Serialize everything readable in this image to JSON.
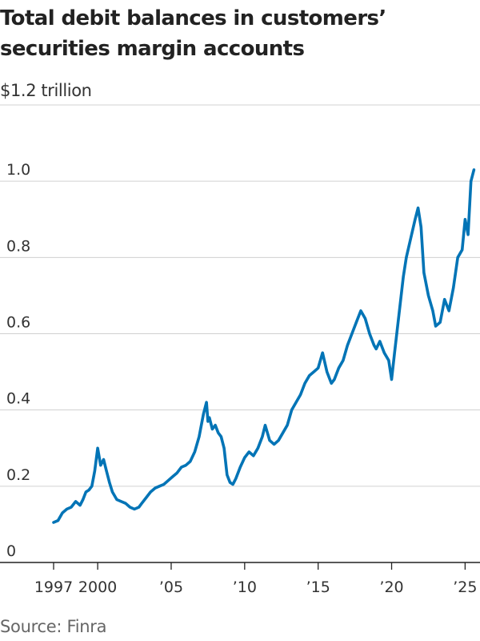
{
  "chart_data": {
    "type": "line",
    "title": "Total debit balances in customers’ securities margin accounts",
    "unit_label": "$1.2 trillion",
    "source": "Source: Finra",
    "ylim": [
      0,
      1.2
    ],
    "y_ticks": [
      {
        "value": 0,
        "label": "0"
      },
      {
        "value": 0.2,
        "label": "0.2"
      },
      {
        "value": 0.4,
        "label": "0.4"
      },
      {
        "value": 0.6,
        "label": "0.6"
      },
      {
        "value": 0.8,
        "label": "0.8"
      },
      {
        "value": 1.0,
        "label": "1.0"
      }
    ],
    "x_ticks": [
      {
        "value": 1997,
        "label": "1997"
      },
      {
        "value": 2000,
        "label": "2000"
      },
      {
        "value": 2005,
        "label": "’05"
      },
      {
        "value": 2010,
        "label": "’10"
      },
      {
        "value": 2015,
        "label": "’15"
      },
      {
        "value": 2020,
        "label": "’20"
      },
      {
        "value": 2025,
        "label": "’25"
      }
    ],
    "grid": true,
    "line_color": "#0274b6",
    "series": [
      {
        "x": [
          1997.0,
          1997.3,
          1997.6,
          1997.9,
          1998.2,
          1998.5,
          1998.8,
          1999.0,
          1999.2,
          1999.4,
          1999.6,
          1999.8,
          2000.0,
          2000.2,
          2000.4,
          2000.6,
          2000.8,
          2001.0,
          2001.3,
          2001.6,
          2001.9,
          2002.2,
          2002.5,
          2002.8,
          2003.0,
          2003.3,
          2003.6,
          2003.9,
          2004.2,
          2004.5,
          2004.8,
          2005.1,
          2005.4,
          2005.7,
          2006.0,
          2006.3,
          2006.6,
          2006.9,
          2007.2,
          2007.4,
          2007.5,
          2007.6,
          2007.8,
          2008.0,
          2008.2,
          2008.4,
          2008.6,
          2008.8,
          2009.0,
          2009.2,
          2009.4,
          2009.7,
          2010.0,
          2010.3,
          2010.6,
          2010.9,
          2011.2,
          2011.4,
          2011.7,
          2012.0,
          2012.3,
          2012.6,
          2012.9,
          2013.2,
          2013.5,
          2013.8,
          2014.1,
          2014.4,
          2014.7,
          2015.0,
          2015.3,
          2015.6,
          2015.9,
          2016.1,
          2016.4,
          2016.7,
          2017.0,
          2017.3,
          2017.6,
          2017.9,
          2018.2,
          2018.5,
          2018.8,
          2018.95,
          2019.2,
          2019.5,
          2019.8,
          2020.0,
          2020.2,
          2020.5,
          2020.8,
          2021.0,
          2021.3,
          2021.6,
          2021.8,
          2022.0,
          2022.2,
          2022.5,
          2022.8,
          2023.0,
          2023.3,
          2023.6,
          2023.9,
          2024.2,
          2024.5,
          2024.8,
          2025.0,
          2025.2,
          2025.4,
          2025.6
        ],
        "values": [
          0.105,
          0.11,
          0.13,
          0.14,
          0.145,
          0.16,
          0.15,
          0.165,
          0.185,
          0.19,
          0.2,
          0.24,
          0.3,
          0.255,
          0.27,
          0.24,
          0.21,
          0.185,
          0.165,
          0.16,
          0.155,
          0.145,
          0.14,
          0.145,
          0.155,
          0.17,
          0.185,
          0.195,
          0.2,
          0.205,
          0.215,
          0.225,
          0.235,
          0.25,
          0.255,
          0.265,
          0.29,
          0.33,
          0.39,
          0.42,
          0.37,
          0.38,
          0.35,
          0.36,
          0.34,
          0.33,
          0.3,
          0.23,
          0.21,
          0.205,
          0.22,
          0.25,
          0.275,
          0.29,
          0.28,
          0.3,
          0.33,
          0.36,
          0.32,
          0.31,
          0.32,
          0.34,
          0.36,
          0.4,
          0.42,
          0.44,
          0.47,
          0.49,
          0.5,
          0.51,
          0.55,
          0.5,
          0.47,
          0.48,
          0.51,
          0.53,
          0.57,
          0.6,
          0.63,
          0.66,
          0.64,
          0.6,
          0.57,
          0.56,
          0.58,
          0.55,
          0.53,
          0.48,
          0.55,
          0.65,
          0.75,
          0.8,
          0.85,
          0.9,
          0.93,
          0.88,
          0.76,
          0.7,
          0.66,
          0.62,
          0.63,
          0.69,
          0.66,
          0.72,
          0.8,
          0.82,
          0.9,
          0.86,
          1.0,
          1.03
        ]
      }
    ]
  }
}
